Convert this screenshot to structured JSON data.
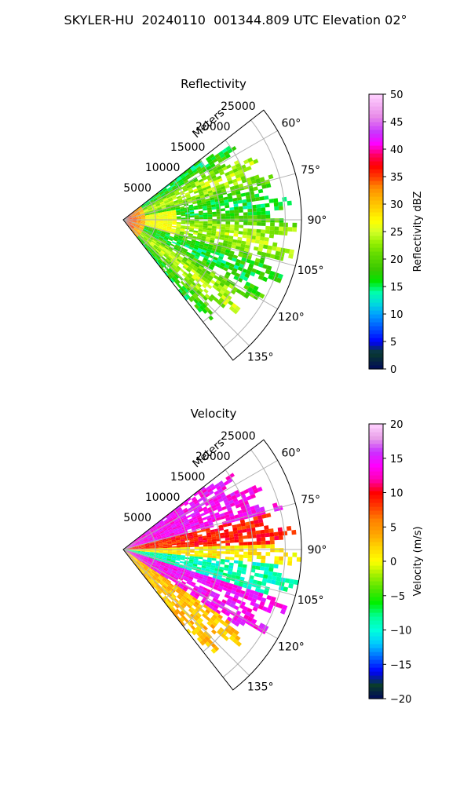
{
  "figure": {
    "title": "SKYLER-HU  20240110  001344.809 UTC Elevation 02°"
  },
  "colors": {
    "grid": "#b0b0b0",
    "axis": "#000000",
    "background": "#ffffff"
  },
  "chart_data": [
    {
      "type": "heatmap",
      "subtype": "polar-sector-radar",
      "title": "Reflectivity",
      "radial_axis_label": "Meters",
      "radial_ticks": [
        5000,
        10000,
        15000,
        20000,
        25000
      ],
      "radial_tick_labels": [
        "5000",
        "10000",
        "15000",
        "20000",
        "25000"
      ],
      "r_max_m": 27500,
      "azimuth_range_deg": [
        52,
        142
      ],
      "azimuth_ticks": [
        60,
        75,
        90,
        105,
        120,
        135
      ],
      "azimuth_tick_labels": [
        "60°",
        "75°",
        "90°",
        "105°",
        "120°",
        "135°"
      ],
      "grid": true,
      "colorbar": {
        "label": "Reflectivity dBZ",
        "min": 0,
        "max": 50,
        "ticks": [
          0,
          5,
          10,
          15,
          20,
          25,
          30,
          35,
          40,
          45,
          50
        ],
        "tick_labels": [
          "0",
          "5",
          "10",
          "15",
          "20",
          "25",
          "30",
          "35",
          "40",
          "45",
          "50"
        ],
        "colormap": [
          [
            0,
            "#000a5a"
          ],
          [
            3,
            "#0a3c2c"
          ],
          [
            5,
            "#0000ff"
          ],
          [
            8,
            "#0064ff"
          ],
          [
            10,
            "#00a0ff"
          ],
          [
            12,
            "#00dcdc"
          ],
          [
            14,
            "#00ffaa"
          ],
          [
            16,
            "#00e600"
          ],
          [
            18,
            "#37c800"
          ],
          [
            21,
            "#64dc00"
          ],
          [
            23,
            "#96f000"
          ],
          [
            25,
            "#d2ff28"
          ],
          [
            27,
            "#ffff00"
          ],
          [
            29,
            "#ffd700"
          ],
          [
            31,
            "#ffb400"
          ],
          [
            33,
            "#ff8c00"
          ],
          [
            35,
            "#ff3c00"
          ],
          [
            37,
            "#ff0000"
          ],
          [
            39,
            "#ff0064"
          ],
          [
            41,
            "#ff00ff"
          ],
          [
            43,
            "#c832ff"
          ],
          [
            46,
            "#e88ce8"
          ],
          [
            50,
            "#ffd2ff"
          ]
        ]
      },
      "field_description_values": {
        "near_radar_dbz": 35,
        "main_echo_dbz": 20,
        "center_beam_dbz": 25
      }
    },
    {
      "type": "heatmap",
      "subtype": "polar-sector-radar",
      "title": "Velocity",
      "radial_axis_label": "Meters",
      "radial_ticks": [
        5000,
        10000,
        15000,
        20000,
        25000
      ],
      "radial_tick_labels": [
        "5000",
        "10000",
        "15000",
        "20000",
        "25000"
      ],
      "r_max_m": 27500,
      "azimuth_range_deg": [
        52,
        142
      ],
      "azimuth_ticks": [
        60,
        75,
        90,
        105,
        120,
        135
      ],
      "azimuth_tick_labels": [
        "60°",
        "75°",
        "90°",
        "105°",
        "120°",
        "135°"
      ],
      "grid": true,
      "colorbar": {
        "label": "Velocity (m/s)",
        "min": -20,
        "max": 20,
        "ticks": [
          -20,
          -15,
          -10,
          -5,
          0,
          5,
          10,
          15,
          20
        ],
        "tick_labels": [
          "−20",
          "−15",
          "−10",
          "−5",
          "0",
          "5",
          "10",
          "15",
          "20"
        ],
        "colormap": [
          [
            -20,
            "#000a5a"
          ],
          [
            -18,
            "#0a3c2c"
          ],
          [
            -16,
            "#0000ff"
          ],
          [
            -14,
            "#0064ff"
          ],
          [
            -12,
            "#00c8ff"
          ],
          [
            -10,
            "#00ffdc"
          ],
          [
            -8,
            "#00ff96"
          ],
          [
            -6,
            "#00f000"
          ],
          [
            -4,
            "#50e600"
          ],
          [
            -2,
            "#a0f000"
          ],
          [
            0,
            "#ffff00"
          ],
          [
            2,
            "#ffd700"
          ],
          [
            4,
            "#ffa500"
          ],
          [
            6,
            "#ff8200"
          ],
          [
            8,
            "#ff3c00"
          ],
          [
            10,
            "#ff0000"
          ],
          [
            12,
            "#ff00b4"
          ],
          [
            14,
            "#ff00ff"
          ],
          [
            16,
            "#c832ff"
          ],
          [
            18,
            "#e8a0e8"
          ],
          [
            20,
            "#ffd2ff"
          ]
        ]
      },
      "field_description_values": {
        "band_60_75_ms": 14,
        "band_75_90_ms": 9,
        "band_90_ms": 1,
        "band_95_105_ms": -9,
        "band_108_120_ms": 14,
        "band_125_140_ms": 3
      }
    }
  ]
}
